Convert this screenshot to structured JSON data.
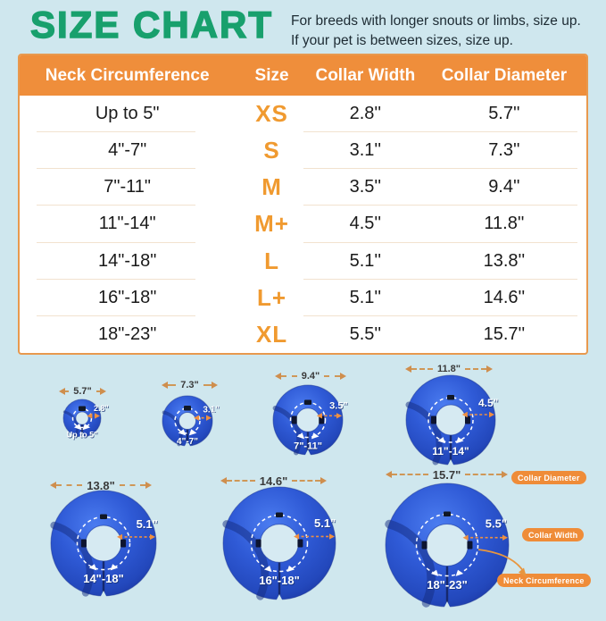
{
  "header": {
    "title": "SIZE CHART",
    "note_line1": "For breeds with longer snouts or limbs, size up.",
    "note_line2": "If your pet is between sizes, size up."
  },
  "table": {
    "headers": [
      "Neck Circumference",
      "Size",
      "Collar Width",
      "Collar Diameter"
    ],
    "rows": [
      {
        "neck": "Up to 5\"",
        "size": "XS",
        "width": "2.8''",
        "diameter": "5.7''"
      },
      {
        "neck": "4\"-7\"",
        "size": "S",
        "width": "3.1''",
        "diameter": "7.3''"
      },
      {
        "neck": "7\"-11\"",
        "size": "M",
        "width": "3.5''",
        "diameter": "9.4''"
      },
      {
        "neck": "11\"-14\"",
        "size": "M+",
        "width": "4.5''",
        "diameter": "11.8''"
      },
      {
        "neck": "14\"-18\"",
        "size": "L",
        "width": "5.1''",
        "diameter": "13.8''"
      },
      {
        "neck": "16\"-18\"",
        "size": "L+",
        "width": "5.1''",
        "diameter": "14.6''"
      },
      {
        "neck": "18\"-23\"",
        "size": "XL",
        "width": "5.5''",
        "diameter": "15.7''"
      }
    ]
  },
  "collars": [
    {
      "size": "XS",
      "diameter": "5.7\"",
      "width": "2.8\"",
      "neck": "Up to 5\""
    },
    {
      "size": "S",
      "diameter": "7.3\"",
      "width": "3.1\"",
      "neck": "4\"-7\""
    },
    {
      "size": "M",
      "diameter": "9.4\"",
      "width": "3.5\"",
      "neck": "7\"-11\""
    },
    {
      "size": "M+",
      "diameter": "11.8\"",
      "width": "4.5\"",
      "neck": "11\"-14\""
    },
    {
      "size": "L",
      "diameter": "13.8\"",
      "width": "5.1\"",
      "neck": "14\"-18\""
    },
    {
      "size": "L+",
      "diameter": "14.6\"",
      "width": "5.1\"",
      "neck": "16\"-18\""
    },
    {
      "size": "XL",
      "diameter": "15.7\"",
      "width": "5.5\"",
      "neck": "18\"-23\""
    }
  ],
  "legend": {
    "diameter": "Collar Diameter",
    "width": "Collar Width",
    "neck": "Neck Circumference"
  },
  "colors": {
    "background": "#cfe7ee",
    "title_green": "#18a06d",
    "accent_orange": "#ef8e3b",
    "size_letter_orange": "#f09a30",
    "table_border_orange": "#e8994e",
    "collar_blue": "#2f5ad6",
    "text_dark": "#1d2b33"
  },
  "chart_data": {
    "type": "table",
    "title": "SIZE CHART",
    "columns": [
      "Neck Circumference",
      "Size",
      "Collar Width",
      "Collar Diameter"
    ],
    "rows": [
      [
        "Up to 5\"",
        "XS",
        "2.8''",
        "5.7''"
      ],
      [
        "4\"-7\"",
        "S",
        "3.1''",
        "7.3''"
      ],
      [
        "7\"-11\"",
        "M",
        "3.5''",
        "9.4''"
      ],
      [
        "11\"-14\"",
        "M+",
        "4.5''",
        "11.8''"
      ],
      [
        "14\"-18\"",
        "L",
        "5.1''",
        "13.8''"
      ],
      [
        "16\"-18\"",
        "L+",
        "5.1''",
        "14.6''"
      ],
      [
        "18\"-23\"",
        "XL",
        "5.5''",
        "15.7''"
      ]
    ]
  }
}
